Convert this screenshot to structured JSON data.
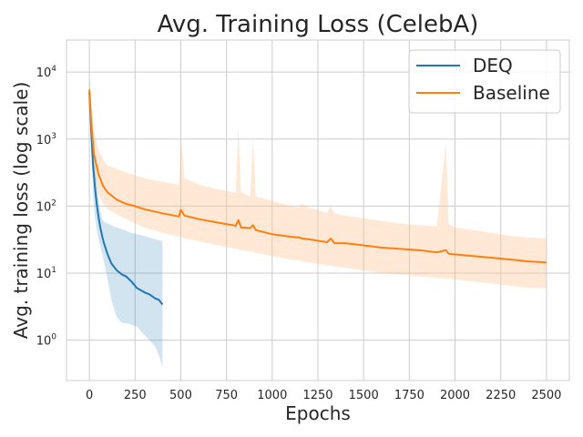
{
  "chart_data": {
    "type": "line",
    "title": "Avg. Training Loss (CelebA)",
    "xlabel": "Epochs",
    "ylabel": "Avg. training loss (log scale)",
    "yscale": "log",
    "xlim": [
      -125,
      2625
    ],
    "ylim": [
      0.25,
      30000
    ],
    "x_ticks": [
      0,
      250,
      500,
      750,
      1000,
      1250,
      1500,
      1750,
      2000,
      2250,
      2500
    ],
    "y_ticks": [
      {
        "value": 1,
        "base": "10",
        "exp": "0"
      },
      {
        "value": 10,
        "base": "10",
        "exp": "1"
      },
      {
        "value": 100,
        "base": "10",
        "exp": "2"
      },
      {
        "value": 1000,
        "base": "10",
        "exp": "3"
      },
      {
        "value": 10000,
        "base": "10",
        "exp": "4"
      }
    ],
    "grid": true,
    "legend_position": "top-right",
    "series": [
      {
        "name": "DEQ",
        "color": "#1f77b4",
        "band_color": "#1f77b4",
        "x": [
          0,
          10,
          20,
          30,
          40,
          50,
          60,
          70,
          80,
          100,
          120,
          150,
          180,
          200,
          230,
          260,
          300,
          330,
          360,
          380,
          400
        ],
        "y": [
          5000,
          1400,
          420,
          200,
          110,
          70,
          48,
          36,
          28,
          19,
          14,
          11,
          9.5,
          9,
          7.5,
          6,
          5.2,
          4.8,
          4.2,
          4,
          3.4
        ],
        "lower": [
          5000,
          700,
          150,
          70,
          45,
          32,
          25,
          20,
          15,
          8,
          4,
          2.2,
          1.8,
          1.8,
          1.7,
          1.6,
          1.2,
          1,
          0.8,
          0.6,
          0.4
        ],
        "upper": [
          9000,
          3000,
          1000,
          500,
          240,
          130,
          85,
          65,
          58,
          55,
          52,
          48,
          45,
          43,
          40,
          38,
          36,
          34,
          32,
          31,
          30
        ]
      },
      {
        "name": "Baseline",
        "color": "#ff7f0e",
        "band_color": "#ffc08a",
        "x": [
          0,
          10,
          25,
          50,
          75,
          100,
          150,
          200,
          250,
          300,
          400,
          490,
          500,
          520,
          600,
          700,
          800,
          815,
          830,
          880,
          895,
          910,
          1000,
          1100,
          1150,
          1160,
          1200,
          1300,
          1320,
          1340,
          1400,
          1500,
          1600,
          1700,
          1800,
          1900,
          1950,
          1965,
          2000,
          2100,
          2200,
          2300,
          2400,
          2500
        ],
        "y": [
          5500,
          1800,
          600,
          300,
          200,
          160,
          125,
          108,
          100,
          90,
          78,
          70,
          88,
          72,
          64,
          57,
          51,
          62,
          48,
          47,
          52,
          44,
          38,
          35,
          34,
          33,
          32,
          29,
          33,
          28,
          28,
          26,
          24,
          23,
          22,
          20.5,
          22,
          19.5,
          19,
          18,
          17,
          16,
          15,
          14.5
        ],
        "lower": [
          5500,
          900,
          300,
          150,
          110,
          90,
          75,
          65,
          55,
          48,
          40,
          35,
          35,
          33,
          30,
          26,
          23,
          23,
          22,
          21,
          21,
          20,
          18,
          16,
          15.5,
          15,
          14.5,
          13,
          13,
          12.5,
          12,
          11,
          10,
          9.5,
          9,
          8.5,
          8.3,
          8.2,
          8,
          7.5,
          7,
          6.5,
          6,
          6
        ],
        "upper": [
          5500,
          3500,
          1400,
          700,
          500,
          400,
          360,
          320,
          290,
          260,
          230,
          210,
          1200,
          260,
          210,
          180,
          160,
          1500,
          160,
          140,
          1100,
          140,
          120,
          100,
          95,
          110,
          95,
          80,
          100,
          78,
          72,
          66,
          60,
          55,
          52,
          50,
          900,
          55,
          48,
          44,
          40,
          36,
          34,
          33
        ]
      }
    ]
  }
}
